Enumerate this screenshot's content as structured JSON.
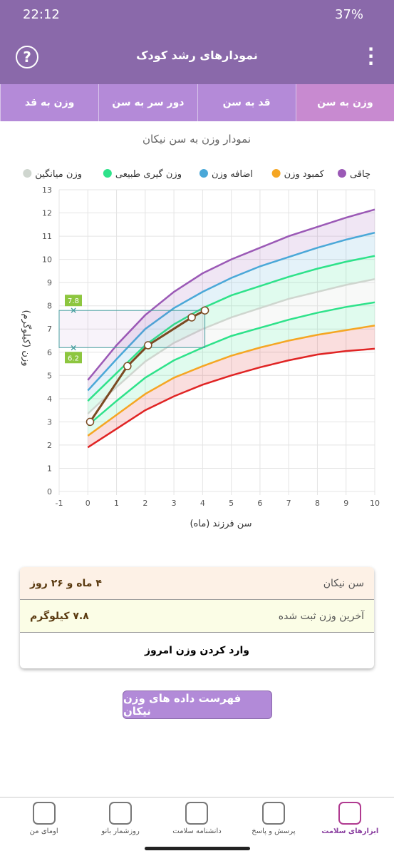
{
  "status_bar": {
    "time": "22:12",
    "battery": "37%"
  },
  "header": {
    "title": "نمودارهای رشد کودک"
  },
  "tabs": [
    "وزن به سن",
    "قد به سن",
    "دور سر به سن",
    "وزن به قد"
  ],
  "chart_data": {
    "type": "line",
    "title": "نمودار وزن به سن نیکان",
    "x_label": "سن فرزند (ماه)",
    "y_label": "وزن (کیلوگرم)",
    "xlim": [
      -1,
      10
    ],
    "ylim": [
      0,
      13
    ],
    "xticks": [
      -1,
      0,
      1,
      2,
      3,
      4,
      5,
      6,
      7,
      8,
      9,
      10
    ],
    "yticks": [
      0,
      1,
      2,
      3,
      4,
      5,
      6,
      7,
      8,
      9,
      10,
      11,
      12,
      13
    ],
    "grid": true,
    "x": [
      0,
      1,
      2,
      3,
      4,
      5,
      6,
      7,
      8,
      9,
      10
    ],
    "series": [
      {
        "name": "چاقی",
        "color": "#9b59b6",
        "values": [
          4.8,
          6.3,
          7.6,
          8.6,
          9.4,
          10.0,
          10.5,
          11.0,
          11.4,
          11.8,
          12.15
        ]
      },
      {
        "name": "کمبود وزن",
        "color": "#f5a623",
        "values": [
          2.4,
          3.3,
          4.2,
          4.9,
          5.4,
          5.85,
          6.2,
          6.5,
          6.75,
          6.95,
          7.15
        ]
      },
      {
        "name": "اضافه وزن",
        "color": "#4aa8d8",
        "values": [
          4.35,
          5.7,
          7.0,
          7.9,
          8.6,
          9.2,
          9.7,
          10.1,
          10.5,
          10.85,
          11.15
        ]
      },
      {
        "name": "وزن گیری طبیعی",
        "color": "#2ee28a",
        "values": [
          3.9,
          5.1,
          6.3,
          7.2,
          7.9,
          8.45,
          8.85,
          9.25,
          9.6,
          9.9,
          10.15
        ]
      },
      {
        "name": "وزن میانگین",
        "color": "#cfd6cf",
        "values": [
          3.35,
          4.5,
          5.6,
          6.4,
          7.0,
          7.5,
          7.9,
          8.3,
          8.6,
          8.9,
          9.15
        ]
      },
      {
        "name": null,
        "color": "#2ee28a",
        "values": [
          2.85,
          3.9,
          4.9,
          5.65,
          6.2,
          6.7,
          7.05,
          7.4,
          7.7,
          7.95,
          8.15
        ]
      },
      {
        "name": null,
        "color": "#e02424",
        "values": [
          1.9,
          2.7,
          3.5,
          4.1,
          4.6,
          5.0,
          5.35,
          5.65,
          5.9,
          6.05,
          6.15
        ]
      }
    ],
    "child": {
      "color": "#7b4a22",
      "x": [
        0.08,
        1.38,
        2.1,
        3.62,
        4.08
      ],
      "values": [
        3.0,
        5.4,
        6.3,
        7.5,
        7.8
      ]
    },
    "annotations": [
      7.8,
      6.2
    ],
    "annotation_color": "#8dc63f"
  },
  "info": {
    "rows": [
      [
        "سن نیکان",
        "۴ ماه و ۲۶ روز"
      ],
      [
        "آخرین وزن ثبت شده",
        "۷.۸ کیلوگرم"
      ]
    ],
    "action": "وارد کردن وزن امروز"
  },
  "button": "فهرست داده های وزن نیکان",
  "nav": [
    "ابزارهای سلامت",
    "پرسش و پاسخ",
    "دانشنامه سلامت",
    "روزشمار بانو",
    "اومای من"
  ]
}
